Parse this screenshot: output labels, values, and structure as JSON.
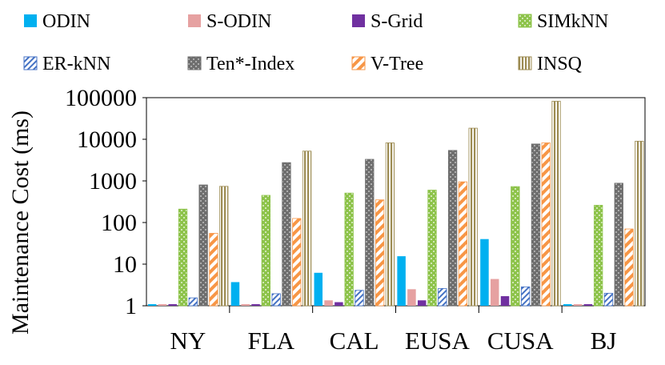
{
  "chart_data": {
    "type": "bar",
    "scale": "log",
    "title": "",
    "xlabel": "",
    "ylabel": "Maintenance Cost (ms)",
    "ylim": [
      1,
      100000
    ],
    "yticks": [
      "1",
      "10",
      "100",
      "1000",
      "10000",
      "100000"
    ],
    "categories": [
      "NY",
      "FLA",
      "CAL",
      "EUSA",
      "CUSA",
      "BJ"
    ],
    "legend_position": "top",
    "series": [
      {
        "name": "ODIN",
        "color": "#00B0F0",
        "pattern": "solid",
        "values": [
          1,
          3.7,
          6.2,
          15.5,
          40,
          1
        ]
      },
      {
        "name": "S-ODIN",
        "color": "#E6A1A1",
        "pattern": "solid",
        "values": [
          1,
          1,
          1.35,
          2.5,
          4.4,
          1
        ]
      },
      {
        "name": "S-Grid",
        "color": "#7030A0",
        "pattern": "solid",
        "values": [
          1,
          1,
          1.22,
          1.35,
          1.7,
          1
        ]
      },
      {
        "name": "SIMkNN",
        "color": "#8DC34A",
        "pattern": "dots",
        "values": [
          210,
          450,
          510,
          600,
          730,
          260
        ]
      },
      {
        "name": "ER-kNN",
        "color": "#4472C4",
        "pattern": "diag-thin",
        "values": [
          1.55,
          1.95,
          2.35,
          2.6,
          2.85,
          2.0
        ]
      },
      {
        "name": "Ten*-Index",
        "color": "#6E6E6E",
        "pattern": "dots-dark",
        "values": [
          800,
          2750,
          3300,
          5400,
          7700,
          880
        ]
      },
      {
        "name": "V-Tree",
        "color": "#F79646",
        "pattern": "diag-thick",
        "values": [
          55,
          125,
          350,
          950,
          8200,
          70
        ]
      },
      {
        "name": "INSQ",
        "color": "#9C8B52",
        "pattern": "vstripes",
        "values": [
          740,
          5200,
          8200,
          18500,
          82000,
          9000
        ]
      }
    ]
  }
}
